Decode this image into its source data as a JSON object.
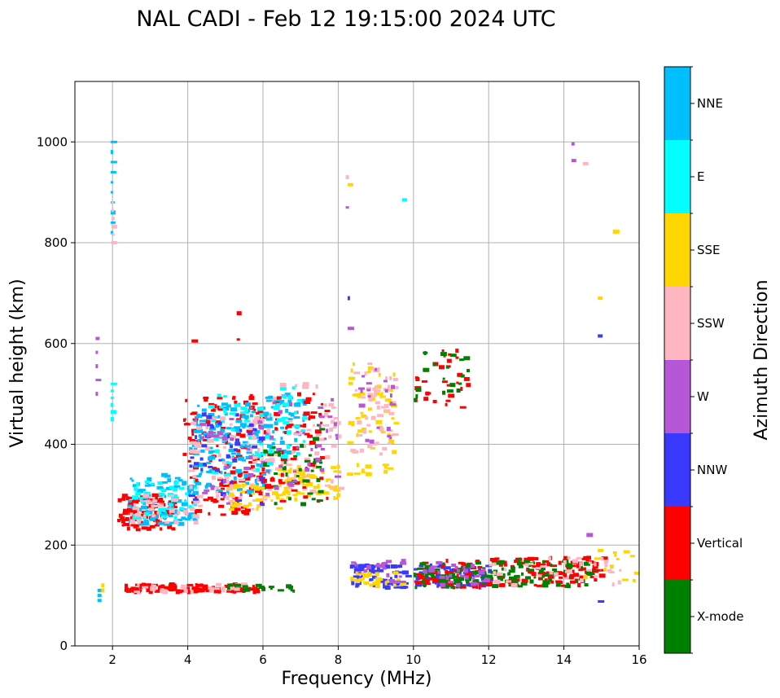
{
  "chart_data": {
    "type": "scatter",
    "title": "NAL CADI - Feb 12 19:15:00 2024 UTC",
    "xlabel": "Frequency (MHz)",
    "ylabel": "Virtual height (km)",
    "xlim": [
      1,
      16
    ],
    "ylim": [
      0,
      1120
    ],
    "xticks": [
      2,
      4,
      6,
      8,
      10,
      12,
      14,
      16
    ],
    "yticks": [
      0,
      200,
      400,
      600,
      800,
      1000
    ],
    "grid": true,
    "colorbar": {
      "title": "Azimuth Direction",
      "categories": [
        {
          "name": "X-mode",
          "color": "#008000"
        },
        {
          "name": "Vertical",
          "color": "#ff0000"
        },
        {
          "name": "NNW",
          "color": "#3a3aff"
        },
        {
          "name": "W",
          "color": "#b557d6"
        },
        {
          "name": "SSW",
          "color": "#ffb6c1"
        },
        {
          "name": "SSE",
          "color": "#ffd700"
        },
        {
          "name": "E",
          "color": "#00ffff"
        },
        {
          "name": "NNE",
          "color": "#00bfff"
        }
      ]
    },
    "clusters": [
      {
        "direction": "Vertical",
        "x": [
          2.1,
          3.6
        ],
        "y": [
          230,
          300
        ],
        "n": 110
      },
      {
        "direction": "NNE",
        "x": [
          2.4,
          4.2
        ],
        "y": [
          240,
          340
        ],
        "n": 90
      },
      {
        "direction": "E",
        "x": [
          2.5,
          4.2
        ],
        "y": [
          250,
          330
        ],
        "n": 50
      },
      {
        "direction": "SSW",
        "x": [
          2.3,
          4.3
        ],
        "y": [
          240,
          300
        ],
        "n": 40
      },
      {
        "direction": "Vertical",
        "x": [
          3.8,
          6.0
        ],
        "y": [
          260,
          500
        ],
        "n": 150
      },
      {
        "direction": "NNE",
        "x": [
          4.0,
          6.0
        ],
        "y": [
          300,
          480
        ],
        "n": 140
      },
      {
        "direction": "E",
        "x": [
          4.5,
          6.2
        ],
        "y": [
          320,
          500
        ],
        "n": 40
      },
      {
        "direction": "SSW",
        "x": [
          4.0,
          6.0
        ],
        "y": [
          260,
          460
        ],
        "n": 70
      },
      {
        "direction": "NNW",
        "x": [
          4.0,
          6.0
        ],
        "y": [
          280,
          460
        ],
        "n": 40
      },
      {
        "direction": "W",
        "x": [
          4.0,
          6.0
        ],
        "y": [
          280,
          460
        ],
        "n": 30
      },
      {
        "direction": "SSE",
        "x": [
          5.0,
          6.5
        ],
        "y": [
          270,
          320
        ],
        "n": 30
      },
      {
        "direction": "NNE",
        "x": [
          6.0,
          7.1
        ],
        "y": [
          380,
          500
        ],
        "n": 60
      },
      {
        "direction": "SSW",
        "x": [
          6.0,
          8.0
        ],
        "y": [
          300,
          520
        ],
        "n": 70
      },
      {
        "direction": "SSE",
        "x": [
          6.3,
          8.0
        ],
        "y": [
          290,
          360
        ],
        "n": 60
      },
      {
        "direction": "Vertical",
        "x": [
          6.0,
          7.8
        ],
        "y": [
          280,
          500
        ],
        "n": 60
      },
      {
        "direction": "X-mode",
        "x": [
          6.0,
          7.5
        ],
        "y": [
          280,
          440
        ],
        "n": 40
      },
      {
        "direction": "W",
        "x": [
          6.0,
          8.0
        ],
        "y": [
          300,
          500
        ],
        "n": 40
      },
      {
        "direction": "E",
        "x": [
          6.0,
          7.2
        ],
        "y": [
          350,
          520
        ],
        "n": 25
      },
      {
        "direction": "SSE",
        "x": [
          8.2,
          9.5
        ],
        "y": [
          340,
          560
        ],
        "n": 60
      },
      {
        "direction": "SSW",
        "x": [
          8.3,
          9.5
        ],
        "y": [
          380,
          560
        ],
        "n": 50
      },
      {
        "direction": "W",
        "x": [
          8.5,
          9.5
        ],
        "y": [
          400,
          560
        ],
        "n": 20
      },
      {
        "direction": "Vertical",
        "x": [
          10.0,
          11.5
        ],
        "y": [
          470,
          590
        ],
        "n": 30
      },
      {
        "direction": "X-mode",
        "x": [
          10.0,
          11.5
        ],
        "y": [
          480,
          590
        ],
        "n": 20
      },
      {
        "direction": "Vertical",
        "x": [
          2.3,
          5.8
        ],
        "y": [
          106,
          122
        ],
        "n": 110
      },
      {
        "direction": "SSW",
        "x": [
          2.3,
          5.5
        ],
        "y": [
          106,
          122
        ],
        "n": 30
      },
      {
        "direction": "X-mode",
        "x": [
          5.0,
          6.8
        ],
        "y": [
          108,
          122
        ],
        "n": 20
      },
      {
        "direction": "NNW",
        "x": [
          8.3,
          9.8
        ],
        "y": [
          115,
          160
        ],
        "n": 70
      },
      {
        "direction": "SSE",
        "x": [
          8.3,
          9.7
        ],
        "y": [
          118,
          145
        ],
        "n": 30
      },
      {
        "direction": "W",
        "x": [
          8.3,
          9.8
        ],
        "y": [
          125,
          170
        ],
        "n": 20
      },
      {
        "direction": "NNW",
        "x": [
          10.0,
          12.0
        ],
        "y": [
          115,
          160
        ],
        "n": 80
      },
      {
        "direction": "Vertical",
        "x": [
          10.0,
          12.0
        ],
        "y": [
          115,
          170
        ],
        "n": 60
      },
      {
        "direction": "X-mode",
        "x": [
          10.0,
          12.0
        ],
        "y": [
          115,
          165
        ],
        "n": 60
      },
      {
        "direction": "W",
        "x": [
          10.0,
          12.0
        ],
        "y": [
          120,
          165
        ],
        "n": 30
      },
      {
        "direction": "Vertical",
        "x": [
          12.0,
          15.0
        ],
        "y": [
          118,
          175
        ],
        "n": 110
      },
      {
        "direction": "X-mode",
        "x": [
          12.0,
          14.8
        ],
        "y": [
          118,
          170
        ],
        "n": 70
      },
      {
        "direction": "SSW",
        "x": [
          12.0,
          15.5
        ],
        "y": [
          120,
          175
        ],
        "n": 40
      },
      {
        "direction": "SSE",
        "x": [
          14.5,
          16.0
        ],
        "y": [
          128,
          190
        ],
        "n": 15
      }
    ],
    "scattered_points": [
      {
        "direction": "NNE",
        "x": 1.95,
        "y": [
          820,
          1000
        ],
        "n": 10
      },
      {
        "direction": "E",
        "x": 1.95,
        "y": [
          450,
          520
        ],
        "n": 6
      },
      {
        "direction": "SSW",
        "x": 1.97,
        "y": [
          800,
          880
        ],
        "n": 6
      },
      {
        "direction": "W",
        "x": 1.55,
        "y": [
          500,
          610
        ],
        "n": 5
      },
      {
        "direction": "NNE",
        "x": 1.6,
        "y": [
          90,
          110
        ],
        "n": 3
      },
      {
        "direction": "SSE",
        "x": 1.7,
        "y": [
          110,
          120
        ],
        "n": 2
      },
      {
        "direction": "Vertical",
        "x": 4.1,
        "y": [
          605,
          610
        ],
        "n": 1
      },
      {
        "direction": "Vertical",
        "x": 5.3,
        "y": [
          608,
          660
        ],
        "n": 2
      },
      {
        "direction": "SSW",
        "x": 8.2,
        "y": [
          930,
          935
        ],
        "n": 1
      },
      {
        "direction": "SSE",
        "x": 8.25,
        "y": [
          915,
          920
        ],
        "n": 1
      },
      {
        "direction": "W",
        "x": 8.2,
        "y": [
          870,
          875
        ],
        "n": 1
      },
      {
        "direction": "NNW",
        "x": 8.25,
        "y": [
          690,
          695
        ],
        "n": 1
      },
      {
        "direction": "W",
        "x": 8.25,
        "y": [
          630,
          635
        ],
        "n": 1
      },
      {
        "direction": "E",
        "x": 9.7,
        "y": [
          885,
          890
        ],
        "n": 1
      },
      {
        "direction": "W",
        "x": 14.2,
        "y": [
          963,
          996
        ],
        "n": 2
      },
      {
        "direction": "SSW",
        "x": 14.5,
        "y": [
          957,
          962
        ],
        "n": 1
      },
      {
        "direction": "SSE",
        "x": 15.3,
        "y": [
          822,
          827
        ],
        "n": 1
      },
      {
        "direction": "SSE",
        "x": 14.9,
        "y": [
          690,
          695
        ],
        "n": 1
      },
      {
        "direction": "NNW",
        "x": 14.9,
        "y": [
          615,
          620
        ],
        "n": 1
      },
      {
        "direction": "W",
        "x": 14.6,
        "y": [
          220,
          225
        ],
        "n": 1
      },
      {
        "direction": "NNW",
        "x": 14.9,
        "y": [
          88,
          92
        ],
        "n": 1
      },
      {
        "direction": "SSE",
        "x": 15.3,
        "y": [
          185,
          190
        ],
        "n": 1
      }
    ]
  }
}
